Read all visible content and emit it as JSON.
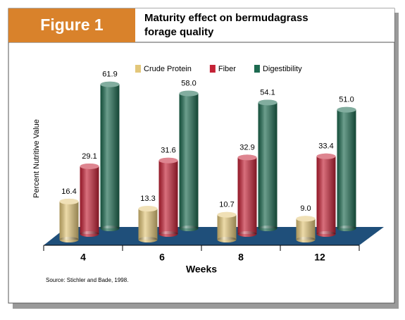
{
  "header": {
    "figure_label": "Figure 1"
  },
  "chart_data": {
    "type": "bar",
    "title": [
      "Maturity effect on bermudagrass",
      "forage quality"
    ],
    "y_label": "Percent Nutritive Value",
    "x_label": "Weeks",
    "source": "Source: Stichler and Bade, 1998.",
    "categories": [
      "4",
      "6",
      "8",
      "12"
    ],
    "series": [
      {
        "name": "Crude Protein",
        "color": "#e3c77a",
        "values": [
          16.4,
          13.3,
          10.7,
          9
        ],
        "value_labels": [
          "16.4",
          "13.3",
          "10.7",
          "9.0"
        ]
      },
      {
        "name": "Fiber",
        "color": "#c42236",
        "values": [
          29.1,
          31.6,
          32.9,
          33.4
        ],
        "value_labels": [
          "29.1",
          "31.6",
          "32.9",
          "33.4"
        ]
      },
      {
        "name": "Digestibility",
        "color": "#1d6a50",
        "values": [
          61.9,
          58,
          54.1,
          51
        ],
        "value_labels": [
          "61.9",
          "58.0",
          "54.1",
          "51.0"
        ]
      }
    ],
    "ylim": [
      0,
      70
    ]
  }
}
